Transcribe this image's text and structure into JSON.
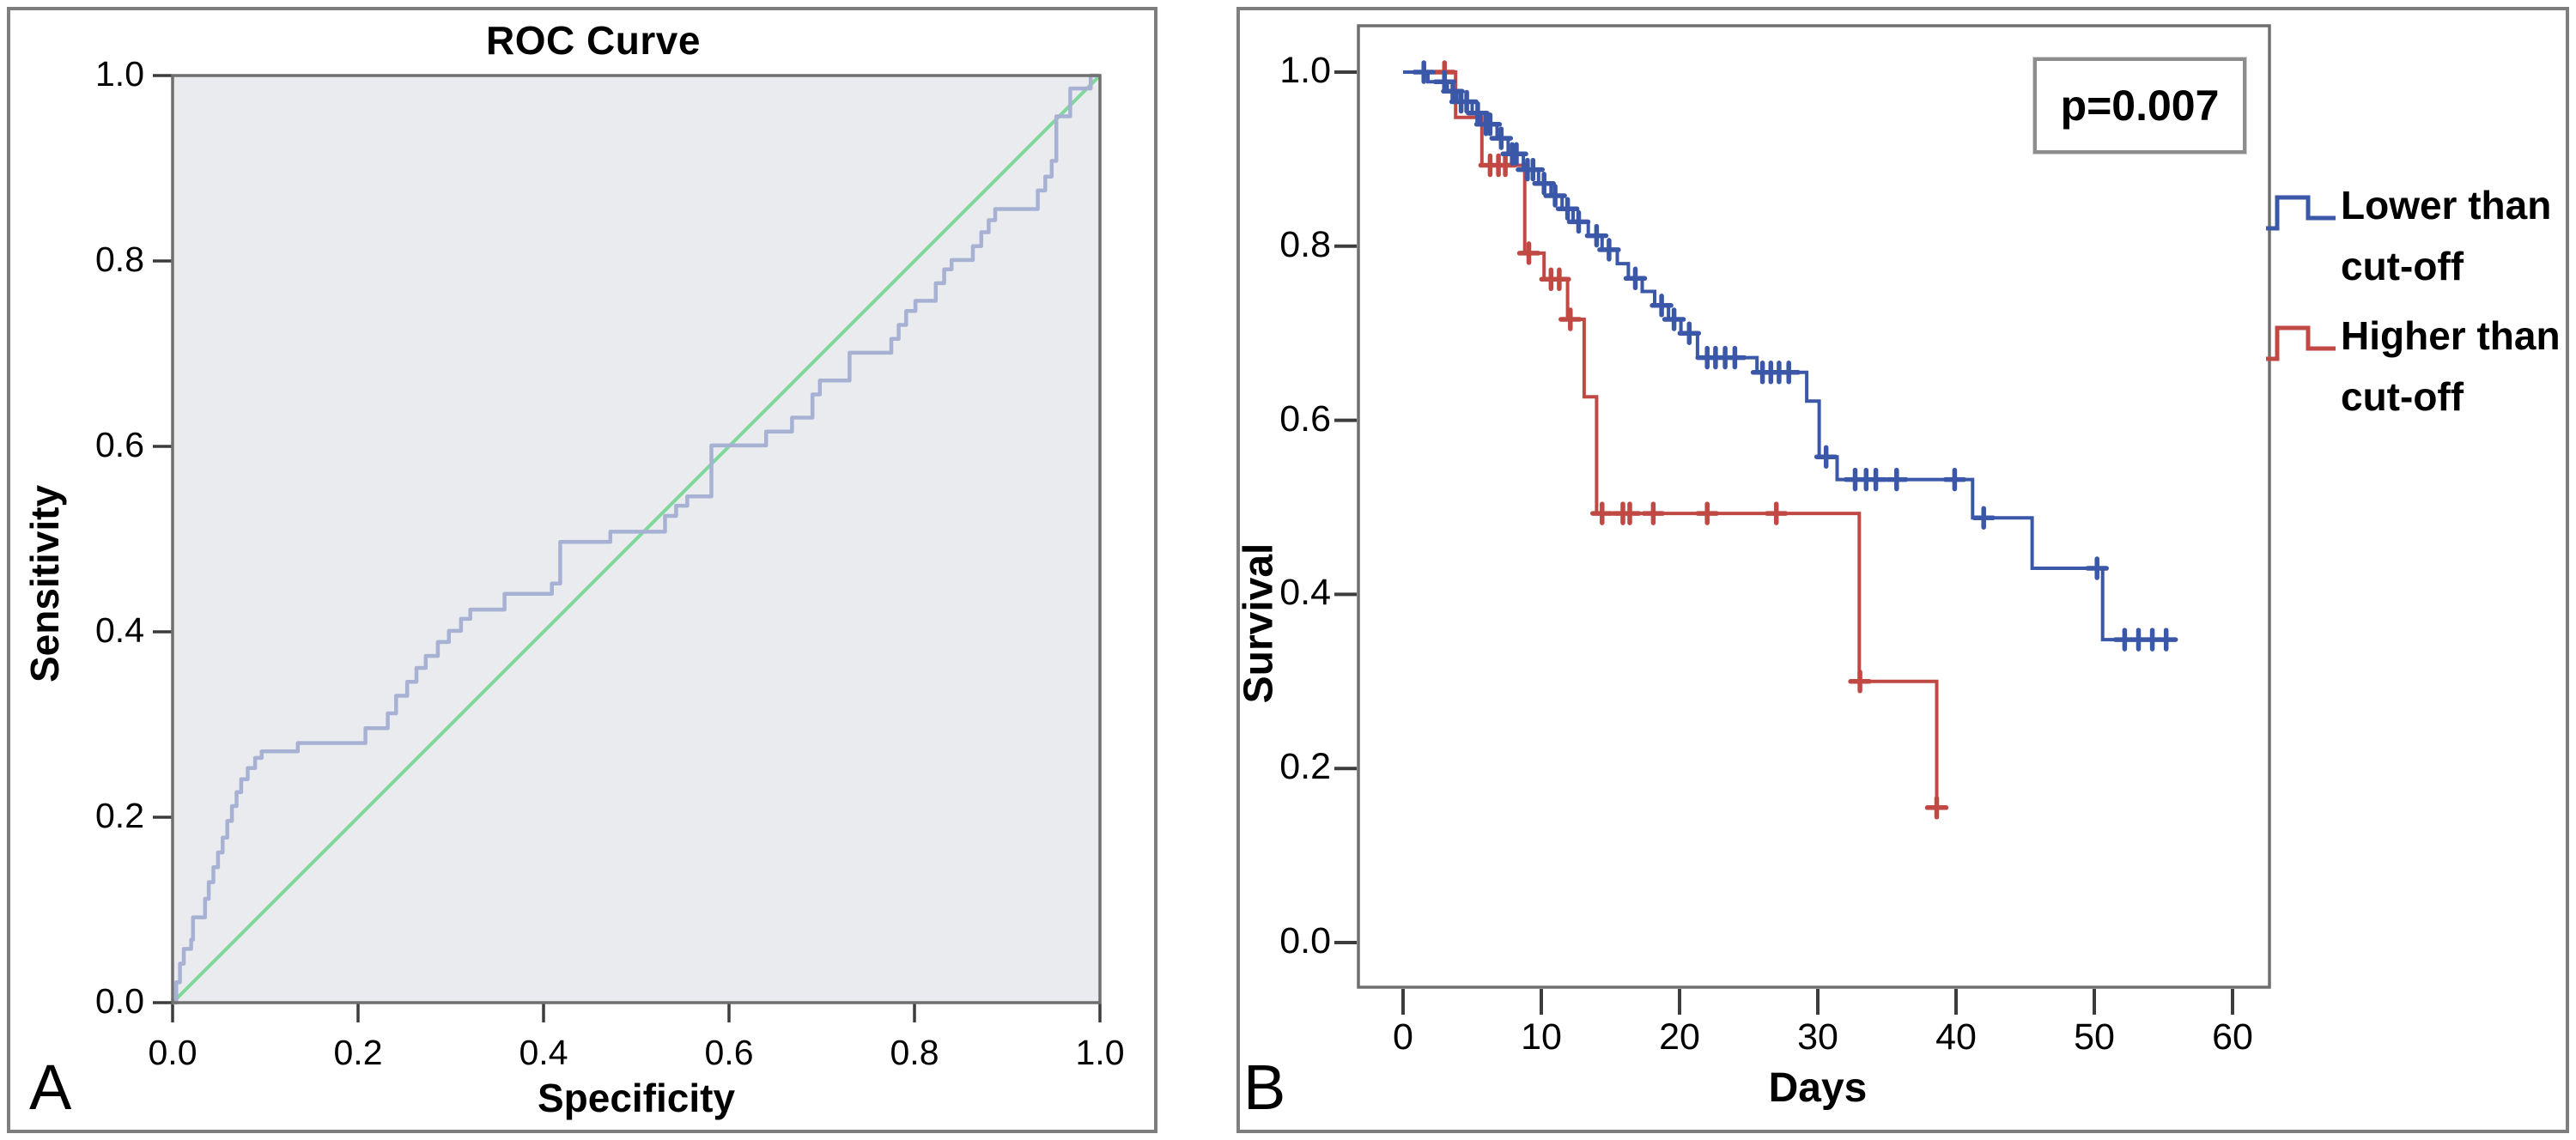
{
  "panels": {
    "a": {
      "letter": "A",
      "title": "ROC Curve",
      "xlabel": "Specificity",
      "ylabel": "Sensitivity"
    },
    "b": {
      "letter": "B",
      "xlabel": "Days",
      "ylabel": "Survival",
      "p_value": "p=0.007",
      "legend": [
        {
          "label_line1": "Lower than",
          "label_line2": "cut-off",
          "color": "#3a57a8"
        },
        {
          "label_line1": "Higher than",
          "label_line2": "cut-off",
          "color": "#c14944"
        }
      ]
    }
  },
  "chart_data": [
    {
      "type": "line",
      "subtype": "roc_step",
      "title": "ROC Curve",
      "xlabel": "Specificity",
      "ylabel": "Sensitivity",
      "xlim": [
        0,
        1
      ],
      "ylim": [
        0,
        1
      ],
      "grid": false,
      "plot_bg": "#e9ebee",
      "border_color": "#6f6f6f",
      "tick_color": "#3c3c3c",
      "xticks": {
        "values": [
          0,
          0.2,
          0.4,
          0.6,
          0.8,
          1.0
        ],
        "labels": [
          "0.0",
          "0.2",
          "0.4",
          "0.6",
          "0.8",
          "1.0"
        ]
      },
      "yticks": {
        "values": [
          0,
          0.2,
          0.4,
          0.6,
          0.8,
          1.0
        ],
        "labels": [
          "0.0",
          "0.2",
          "0.4",
          "0.6",
          "0.8",
          "1.0"
        ]
      },
      "series": [
        {
          "name": "ROC curve",
          "color": "#a7b1d3",
          "width": 4.5,
          "step": "hv",
          "points": [
            [
              0.0,
              0.0
            ],
            [
              0.004,
              0.022
            ],
            [
              0.008,
              0.042
            ],
            [
              0.012,
              0.058
            ],
            [
              0.02,
              0.068
            ],
            [
              0.022,
              0.092
            ],
            [
              0.035,
              0.112
            ],
            [
              0.039,
              0.13
            ],
            [
              0.044,
              0.146
            ],
            [
              0.049,
              0.162
            ],
            [
              0.054,
              0.178
            ],
            [
              0.059,
              0.196
            ],
            [
              0.064,
              0.212
            ],
            [
              0.069,
              0.227
            ],
            [
              0.074,
              0.241
            ],
            [
              0.081,
              0.253
            ],
            [
              0.089,
              0.264
            ],
            [
              0.096,
              0.271
            ],
            [
              0.135,
              0.28
            ],
            [
              0.208,
              0.296
            ],
            [
              0.232,
              0.312
            ],
            [
              0.241,
              0.331
            ],
            [
              0.253,
              0.346
            ],
            [
              0.263,
              0.361
            ],
            [
              0.273,
              0.374
            ],
            [
              0.286,
              0.389
            ],
            [
              0.298,
              0.401
            ],
            [
              0.311,
              0.414
            ],
            [
              0.321,
              0.424
            ],
            [
              0.358,
              0.441
            ],
            [
              0.409,
              0.452
            ],
            [
              0.418,
              0.497
            ],
            [
              0.472,
              0.508
            ],
            [
              0.531,
              0.525
            ],
            [
              0.543,
              0.536
            ],
            [
              0.555,
              0.546
            ],
            [
              0.581,
              0.601
            ],
            [
              0.64,
              0.616
            ],
            [
              0.668,
              0.631
            ],
            [
              0.69,
              0.656
            ],
            [
              0.698,
              0.671
            ],
            [
              0.73,
              0.701
            ],
            [
              0.775,
              0.716
            ],
            [
              0.783,
              0.731
            ],
            [
              0.791,
              0.746
            ],
            [
              0.801,
              0.757
            ],
            [
              0.823,
              0.776
            ],
            [
              0.832,
              0.791
            ],
            [
              0.84,
              0.801
            ],
            [
              0.863,
              0.816
            ],
            [
              0.872,
              0.831
            ],
            [
              0.88,
              0.844
            ],
            [
              0.887,
              0.856
            ],
            [
              0.933,
              0.876
            ],
            [
              0.941,
              0.891
            ],
            [
              0.948,
              0.908
            ],
            [
              0.953,
              0.956
            ],
            [
              0.968,
              0.986
            ],
            [
              0.99,
              1.0
            ],
            [
              1.0,
              1.0
            ]
          ]
        },
        {
          "name": "Reference diagonal",
          "color": "#80d79b",
          "width": 4,
          "step": null,
          "points": [
            [
              0,
              0
            ],
            [
              1,
              1
            ]
          ]
        }
      ]
    },
    {
      "type": "line",
      "subtype": "kaplan_meier",
      "xlabel": "Days",
      "ylabel": "Survival",
      "annotation": "p=0.007",
      "xlim": [
        0,
        62.5
      ],
      "ylim": [
        0,
        1.05
      ],
      "grid": false,
      "plot_bg": "#ffffff",
      "border_color": "#6f6f6f",
      "tick_color": "#3c3c3c",
      "legend_position": "right",
      "xticks": {
        "values": [
          0,
          10,
          20,
          30,
          40,
          50,
          60
        ],
        "labels": [
          "0",
          "10",
          "20",
          "30",
          "40",
          "50",
          "60"
        ]
      },
      "yticks": {
        "values": [
          0,
          0.2,
          0.4,
          0.6,
          0.8,
          1.0
        ],
        "labels": [
          "0.0",
          "0.2",
          "0.4",
          "0.6",
          "0.8",
          "1.0"
        ]
      },
      "series": [
        {
          "name": "Higher than cut-off",
          "color": "#c14944",
          "width": 4,
          "start": [
            0,
            1.0
          ],
          "end": 38.8,
          "drops": [
            [
              3.8,
              0.948
            ],
            [
              5.7,
              0.893
            ],
            [
              8.8,
              0.792
            ],
            [
              10.2,
              0.762
            ],
            [
              11.9,
              0.716
            ],
            [
              13.1,
              0.627
            ],
            [
              14.0,
              0.493
            ],
            [
              33.0,
              0.3
            ],
            [
              38.6,
              0.155
            ]
          ],
          "censors": [
            [
              3.0,
              1.0
            ],
            [
              6.3,
              0.893
            ],
            [
              6.9,
              0.893
            ],
            [
              7.4,
              0.893
            ],
            [
              9.1,
              0.792
            ],
            [
              10.7,
              0.762
            ],
            [
              11.3,
              0.762
            ],
            [
              12.1,
              0.716
            ],
            [
              14.4,
              0.493
            ],
            [
              15.9,
              0.493
            ],
            [
              16.4,
              0.493
            ],
            [
              18.1,
              0.493
            ],
            [
              22.0,
              0.493
            ],
            [
              27.0,
              0.493
            ],
            [
              33.05,
              0.3
            ],
            [
              38.6,
              0.155
            ]
          ]
        },
        {
          "name": "Lower than cut-off",
          "color": "#3a57a8",
          "width": 4,
          "start": [
            0,
            1.0
          ],
          "end": 55.6,
          "drops": [
            [
              1.8,
              0.989
            ],
            [
              3.2,
              0.978
            ],
            [
              3.9,
              0.966
            ],
            [
              5.0,
              0.953
            ],
            [
              5.6,
              0.94
            ],
            [
              6.8,
              0.924
            ],
            [
              7.6,
              0.906
            ],
            [
              8.7,
              0.888
            ],
            [
              9.8,
              0.872
            ],
            [
              10.7,
              0.858
            ],
            [
              11.5,
              0.843
            ],
            [
              12.3,
              0.828
            ],
            [
              13.4,
              0.812
            ],
            [
              14.4,
              0.796
            ],
            [
              15.5,
              0.78
            ],
            [
              16.3,
              0.763
            ],
            [
              17.3,
              0.748
            ],
            [
              18.2,
              0.732
            ],
            [
              19.2,
              0.716
            ],
            [
              20.1,
              0.7
            ],
            [
              21.3,
              0.672
            ],
            [
              25.6,
              0.655
            ],
            [
              29.2,
              0.622
            ],
            [
              30.1,
              0.558
            ],
            [
              31.4,
              0.532
            ],
            [
              41.2,
              0.488
            ],
            [
              45.5,
              0.43
            ],
            [
              50.6,
              0.348
            ]
          ],
          "censors": [
            [
              1.5,
              1.0
            ],
            [
              3.0,
              0.989
            ],
            [
              3.6,
              0.978
            ],
            [
              4.2,
              0.966
            ],
            [
              4.6,
              0.966
            ],
            [
              5.4,
              0.953
            ],
            [
              6.0,
              0.94
            ],
            [
              6.3,
              0.94
            ],
            [
              7.1,
              0.924
            ],
            [
              7.9,
              0.906
            ],
            [
              8.2,
              0.906
            ],
            [
              9.0,
              0.888
            ],
            [
              9.4,
              0.888
            ],
            [
              10.2,
              0.872
            ],
            [
              11.0,
              0.858
            ],
            [
              11.9,
              0.843
            ],
            [
              12.7,
              0.828
            ],
            [
              14.0,
              0.812
            ],
            [
              14.9,
              0.796
            ],
            [
              16.8,
              0.763
            ],
            [
              18.7,
              0.732
            ],
            [
              19.6,
              0.716
            ],
            [
              20.7,
              0.7
            ],
            [
              22.0,
              0.672
            ],
            [
              22.6,
              0.672
            ],
            [
              23.3,
              0.672
            ],
            [
              24.0,
              0.672
            ],
            [
              26.0,
              0.655
            ],
            [
              26.6,
              0.655
            ],
            [
              27.2,
              0.655
            ],
            [
              27.9,
              0.655
            ],
            [
              30.6,
              0.558
            ],
            [
              32.7,
              0.532
            ],
            [
              33.5,
              0.532
            ],
            [
              34.2,
              0.532
            ],
            [
              35.7,
              0.532
            ],
            [
              39.9,
              0.532
            ],
            [
              42.0,
              0.488
            ],
            [
              50.2,
              0.43
            ],
            [
              52.2,
              0.348
            ],
            [
              53.2,
              0.348
            ],
            [
              54.2,
              0.348
            ],
            [
              55.2,
              0.348
            ]
          ]
        }
      ]
    }
  ]
}
